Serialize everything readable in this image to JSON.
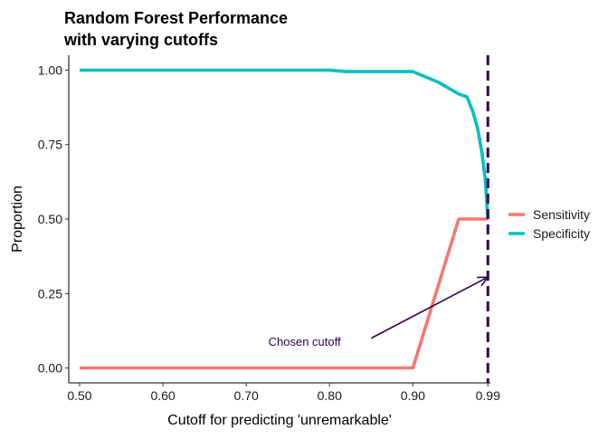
{
  "chart_data": {
    "type": "line",
    "title_lines": [
      "Random Forest Performance",
      "with varying cutoffs"
    ],
    "xlabel": "Cutoff for predicting 'unremarkable'",
    "ylabel": "Proportion",
    "x_ticks": [
      {
        "value": 0.5,
        "label": "0.50"
      },
      {
        "value": 0.6,
        "label": "0.60"
      },
      {
        "value": 0.7,
        "label": "0.70"
      },
      {
        "value": 0.8,
        "label": "0.80"
      },
      {
        "value": 0.9,
        "label": "0.90"
      },
      {
        "value": 0.99,
        "label": "0.99"
      }
    ],
    "y_ticks": [
      {
        "value": 0.0,
        "label": "0.00"
      },
      {
        "value": 0.25,
        "label": "0.25"
      },
      {
        "value": 0.5,
        "label": "0.50"
      },
      {
        "value": 0.75,
        "label": "0.75"
      },
      {
        "value": 1.0,
        "label": "1.00"
      }
    ],
    "xlim": [
      0.487,
      0.993
    ],
    "ylim": [
      -0.05,
      1.05
    ],
    "grid": false,
    "legend_position": "right",
    "series": [
      {
        "name": "Sensitivity",
        "color": "#F8766D",
        "points": [
          [
            0.5,
            0.0
          ],
          [
            0.9,
            0.0
          ],
          [
            0.955,
            0.5
          ],
          [
            0.99,
            0.5
          ]
        ]
      },
      {
        "name": "Specificity",
        "color": "#00BFC4",
        "points": [
          [
            0.5,
            1.0
          ],
          [
            0.8,
            1.0
          ],
          [
            0.82,
            0.995
          ],
          [
            0.9,
            0.995
          ],
          [
            0.93,
            0.96
          ],
          [
            0.955,
            0.92
          ],
          [
            0.965,
            0.91
          ],
          [
            0.972,
            0.86
          ],
          [
            0.978,
            0.8
          ],
          [
            0.983,
            0.72
          ],
          [
            0.987,
            0.63
          ],
          [
            0.99,
            0.5
          ]
        ]
      }
    ],
    "reference_line": {
      "orientation": "vertical",
      "x": 0.99,
      "style": "dashed",
      "color": "#2D004B"
    },
    "annotation": {
      "text": "Chosen cutoff",
      "color": "#2D004B",
      "text_at": [
        0.77,
        0.09
      ],
      "arrow_from": [
        0.85,
        0.1
      ],
      "arrow_to": [
        0.99,
        0.305
      ]
    }
  }
}
